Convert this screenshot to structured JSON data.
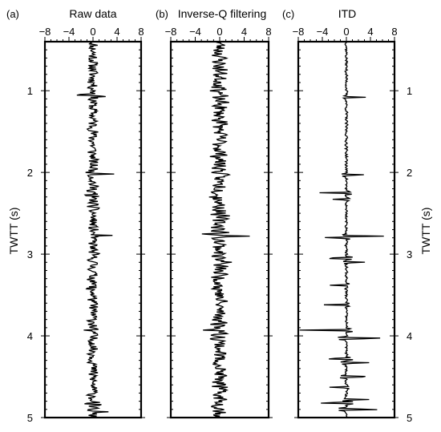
{
  "figure": {
    "y_axis_label": "TWTT (s)",
    "panels": [
      {
        "tag": "(a)",
        "title": "Raw data"
      },
      {
        "tag": "(b)",
        "title": "Inverse-Q filtering"
      },
      {
        "tag": "(c)",
        "title": "ITD"
      }
    ]
  },
  "chart_data": [
    {
      "type": "line",
      "title": "Raw data",
      "panel_tag": "(a)",
      "orientation": "vertical-trace",
      "xlim": [
        -8,
        8
      ],
      "x_ticks": [
        -8,
        -4,
        0,
        4,
        8
      ],
      "ylim": [
        0.4,
        5
      ],
      "y_inverted": true,
      "y_ticks": [
        1,
        2,
        3,
        4,
        5
      ],
      "ylabel": "TWTT (s)",
      "series": [
        {
          "seed": 11,
          "noise_amp": 1.5,
          "spikes": [
            {
              "t": 1.05,
              "amp": -3.5
            },
            {
              "t": 1.07,
              "amp": 3.3
            },
            {
              "t": 2.02,
              "amp": 3.2
            },
            {
              "t": 2.28,
              "amp": -3.1
            },
            {
              "t": 2.77,
              "amp": 3.6
            },
            {
              "t": 3.42,
              "amp": -2.4
            },
            {
              "t": 3.93,
              "amp": -2.4
            },
            {
              "t": 4.83,
              "amp": -2.1
            },
            {
              "t": 4.93,
              "amp": 1.8
            }
          ]
        }
      ]
    },
    {
      "type": "line",
      "title": "Inverse-Q filtering",
      "panel_tag": "(b)",
      "orientation": "vertical-trace",
      "xlim": [
        -8,
        8
      ],
      "x_ticks": [
        -8,
        -4,
        0,
        4,
        8
      ],
      "ylim": [
        0.4,
        5
      ],
      "y_inverted": true,
      "y_ticks": [
        1,
        2,
        3,
        4,
        5
      ],
      "series": [
        {
          "seed": 23,
          "noise_amp": 2.2,
          "spikes": [
            {
              "t": 1.08,
              "amp": -2.3
            },
            {
              "t": 1.38,
              "amp": 2.5
            },
            {
              "t": 2.3,
              "amp": -2.6
            },
            {
              "t": 2.75,
              "amp": -2.6
            },
            {
              "t": 2.78,
              "amp": 4.1
            },
            {
              "t": 3.1,
              "amp": 2.9
            },
            {
              "t": 3.42,
              "amp": -2.3
            },
            {
              "t": 3.93,
              "amp": -2.8
            },
            {
              "t": 4.62,
              "amp": -2.1
            }
          ]
        }
      ]
    },
    {
      "type": "line",
      "title": "ITD",
      "panel_tag": "(c)",
      "orientation": "vertical-trace",
      "xlim": [
        -8,
        8
      ],
      "x_ticks": [
        -8,
        -4,
        0,
        4,
        8
      ],
      "ylim": [
        0.4,
        5
      ],
      "y_inverted": true,
      "y_ticks": [
        1,
        2,
        3,
        4,
        5
      ],
      "ylabel": "TWTT (s)",
      "series": [
        {
          "seed": 37,
          "noise_amp": 0.35,
          "spikes": [
            {
              "t": 1.08,
              "amp": 3.2
            },
            {
              "t": 2.03,
              "amp": 3.3
            },
            {
              "t": 2.25,
              "amp": -4.8
            },
            {
              "t": 2.33,
              "amp": -2.6
            },
            {
              "t": 2.78,
              "amp": 6.0
            },
            {
              "t": 2.8,
              "amp": -3.5
            },
            {
              "t": 3.05,
              "amp": -4.2
            },
            {
              "t": 3.1,
              "amp": 3.2
            },
            {
              "t": 3.38,
              "amp": -2.8
            },
            {
              "t": 3.62,
              "amp": -3.6
            },
            {
              "t": 3.93,
              "amp": -7.8
            },
            {
              "t": 4.03,
              "amp": 7.0
            },
            {
              "t": 4.28,
              "amp": -4.2
            },
            {
              "t": 4.33,
              "amp": 4.2
            },
            {
              "t": 4.5,
              "amp": 5.0
            },
            {
              "t": 4.63,
              "amp": -2.9
            },
            {
              "t": 4.78,
              "amp": 3.9
            },
            {
              "t": 4.82,
              "amp": -5.4
            },
            {
              "t": 4.9,
              "amp": 6.2
            }
          ]
        }
      ]
    }
  ]
}
